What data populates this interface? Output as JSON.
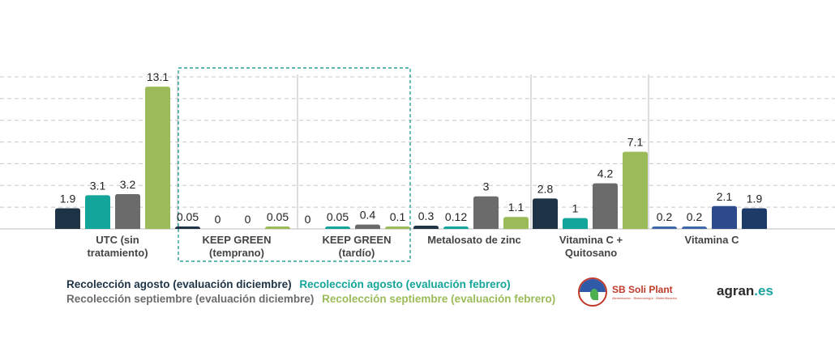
{
  "chart_data": {
    "type": "bar",
    "categories": [
      "UTC (sin\ntratamiento)",
      "KEEP GREEN\n(temprano)",
      "KEEP GREEN\n(tardío)",
      "Metalosato de zinc",
      "Vitamina C +\nQuitosano",
      "Vitamina C"
    ],
    "series": [
      {
        "name": "Recolección agosto (evaluación diciembre)",
        "color": "#1e3446",
        "values": [
          1.9,
          0.05,
          0,
          0.3,
          2.8,
          0.2
        ],
        "labels": [
          "1.9",
          "0.05",
          "0",
          "0.3",
          "2.8",
          "0.2"
        ]
      },
      {
        "name": "Recolección agosto (evaluación febrero)",
        "color": "#13a59a",
        "values": [
          3.1,
          0,
          0.05,
          0.12,
          1,
          0.2
        ],
        "labels": [
          "3.1",
          "0",
          "0.05",
          "0.12",
          "1",
          "0.2"
        ]
      },
      {
        "name": "Recolección septiembre (evaluación diciembre)",
        "color": "#6b6b6b",
        "values": [
          3.2,
          0,
          0.4,
          3,
          4.2,
          2.1
        ],
        "labels": [
          "3.2",
          "0",
          "0.4",
          "3",
          "4.2",
          "2.1"
        ]
      },
      {
        "name": "Recolección septiembre  (evaluación febrero)",
        "color": "#9bbb59",
        "values": [
          13.1,
          0.05,
          0.1,
          1.1,
          7.1,
          1.9
        ],
        "labels": [
          "13.1",
          "0.05",
          "0.1",
          "1.1",
          "7.1",
          "1.9"
        ]
      }
    ],
    "bar_colors_override": {
      "5": {
        "0": "#3d67a8",
        "1": "#3d67a8",
        "2": "#2d4b8a",
        "3": "#1e3a66"
      }
    },
    "ylim": [
      0,
      14
    ],
    "grid": true,
    "legend_position": "bottom-left"
  },
  "logos": {
    "sb": {
      "name": "SB Soli Plant",
      "tagline": "Alimentación · Biotecnología · Biofertilización"
    },
    "agran": {
      "prefix": "agran",
      "suffix": ".es"
    }
  }
}
